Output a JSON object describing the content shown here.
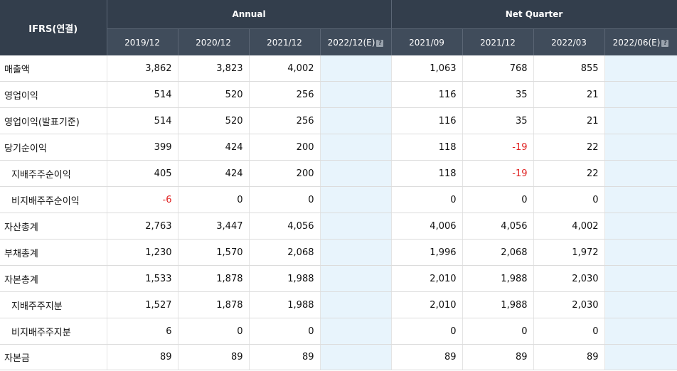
{
  "header": {
    "corner": "IFRS(연결)",
    "groups": {
      "annual": "Annual",
      "quarter": "Net Quarter"
    },
    "periods": [
      "2019/12",
      "2020/12",
      "2021/12",
      "2022/12(E)",
      "2021/09",
      "2021/12",
      "2022/03",
      "2022/06(E)"
    ],
    "help_icon": "?"
  },
  "rows": [
    {
      "label": "매출액",
      "indent": false,
      "values": [
        "3,862",
        "3,823",
        "4,002",
        "",
        "1,063",
        "768",
        "855",
        ""
      ]
    },
    {
      "label": "영업이익",
      "indent": false,
      "values": [
        "514",
        "520",
        "256",
        "",
        "116",
        "35",
        "21",
        ""
      ]
    },
    {
      "label": "영업이익(발표기준)",
      "indent": false,
      "values": [
        "514",
        "520",
        "256",
        "",
        "116",
        "35",
        "21",
        ""
      ]
    },
    {
      "label": "당기순이익",
      "indent": false,
      "values": [
        "399",
        "424",
        "200",
        "",
        "118",
        "-19",
        "22",
        ""
      ]
    },
    {
      "label": "지배주주순이익",
      "indent": true,
      "values": [
        "405",
        "424",
        "200",
        "",
        "118",
        "-19",
        "22",
        ""
      ]
    },
    {
      "label": "비지배주주순이익",
      "indent": true,
      "values": [
        "-6",
        "0",
        "0",
        "",
        "0",
        "0",
        "0",
        ""
      ]
    },
    {
      "label": "자산총계",
      "indent": false,
      "values": [
        "2,763",
        "3,447",
        "4,056",
        "",
        "4,006",
        "4,056",
        "4,002",
        ""
      ]
    },
    {
      "label": "부채총계",
      "indent": false,
      "values": [
        "1,230",
        "1,570",
        "2,068",
        "",
        "1,996",
        "2,068",
        "1,972",
        ""
      ]
    },
    {
      "label": "자본총계",
      "indent": false,
      "values": [
        "1,533",
        "1,878",
        "1,988",
        "",
        "2,010",
        "1,988",
        "2,030",
        ""
      ]
    },
    {
      "label": "지배주주지분",
      "indent": true,
      "values": [
        "1,527",
        "1,878",
        "1,988",
        "",
        "2,010",
        "1,988",
        "2,030",
        ""
      ]
    },
    {
      "label": "비지배주주지분",
      "indent": true,
      "values": [
        "6",
        "0",
        "0",
        "",
        "0",
        "0",
        "0",
        ""
      ]
    },
    {
      "label": "자본금",
      "indent": false,
      "values": [
        "89",
        "89",
        "89",
        "",
        "89",
        "89",
        "89",
        ""
      ]
    }
  ],
  "colors": {
    "header_bg": "#36414f",
    "estimate_bg": "#e8f4fc",
    "negative": "#e02020"
  }
}
